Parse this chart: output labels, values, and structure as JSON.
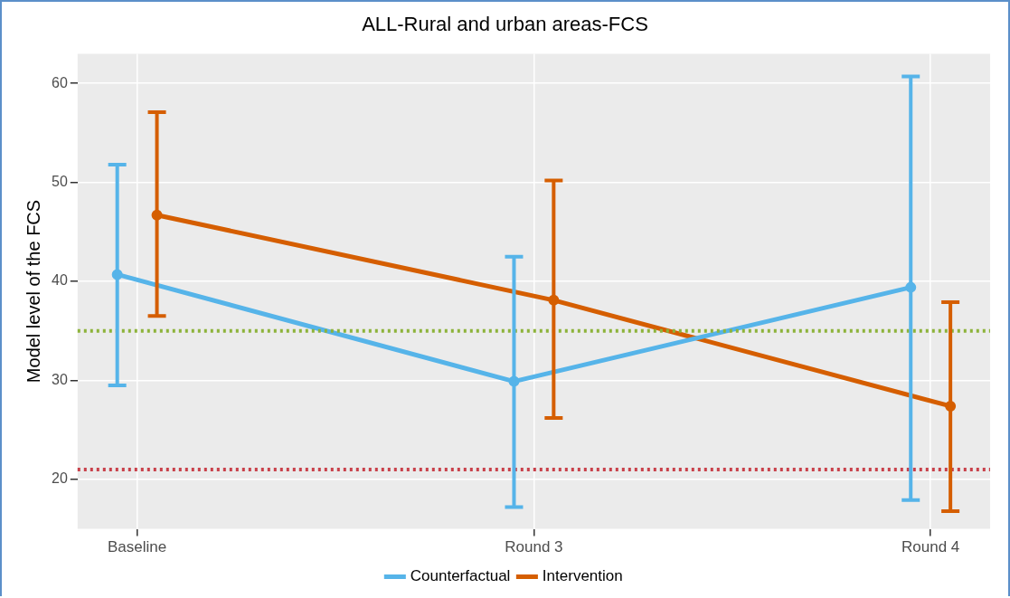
{
  "chart_data": {
    "type": "line",
    "title": "ALL-Rural and urban areas-FCS",
    "ylabel": "Model level of the FCS",
    "categories": [
      "Baseline",
      "Round 3",
      "Round 4"
    ],
    "series": [
      {
        "name": "Counterfactual",
        "color": "#56b4e9",
        "values": [
          40.7,
          29.9,
          39.4
        ],
        "errors": [
          [
            29.5,
            51.8
          ],
          [
            17.2,
            42.5
          ],
          [
            17.9,
            60.7
          ]
        ]
      },
      {
        "name": "Intervention",
        "color": "#d55e00",
        "values": [
          46.7,
          38.1,
          27.4
        ],
        "errors": [
          [
            36.5,
            57.1
          ],
          [
            26.2,
            50.2
          ],
          [
            16.8,
            37.9
          ]
        ]
      }
    ],
    "ylim": [
      15,
      63
    ],
    "yticks": [
      20,
      30,
      40,
      50,
      60
    ],
    "grid": true,
    "legend": "bottom",
    "marker": "circle",
    "line_style": "solid",
    "ref_lines": [
      {
        "axis": "y",
        "value": 35,
        "color": "#8db33a",
        "line_style": "dotted"
      },
      {
        "axis": "y",
        "value": 21,
        "color": "#c8404a",
        "line_style": "dotted"
      }
    ]
  }
}
